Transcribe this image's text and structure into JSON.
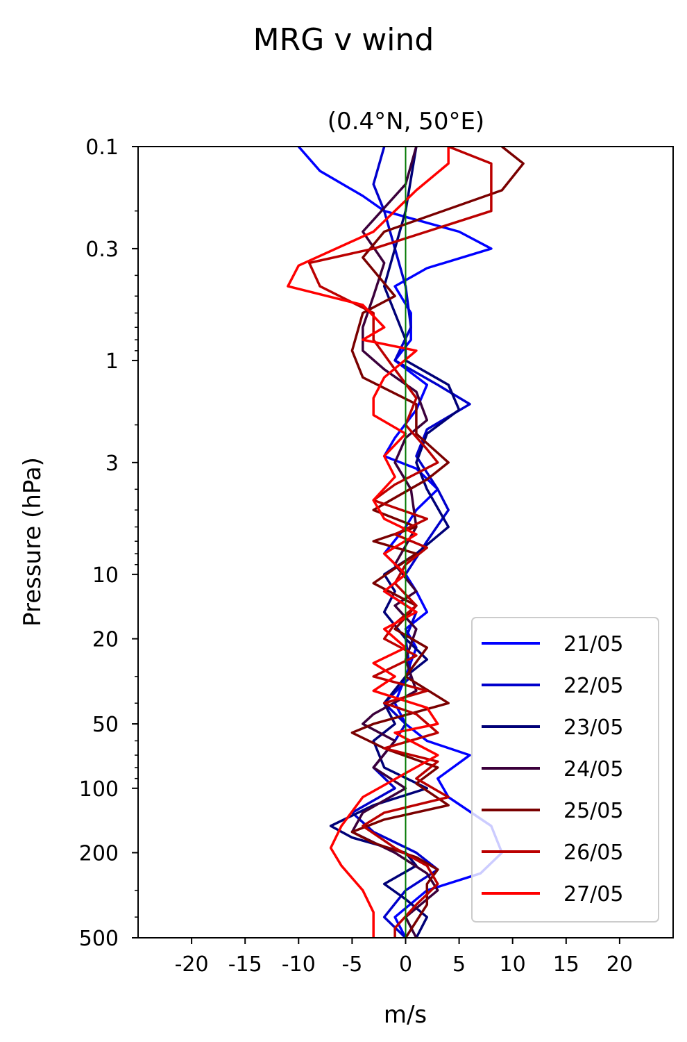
{
  "chart_data": {
    "type": "line",
    "suptitle": "MRG v wind",
    "title": "(0.4°N, 50°E)",
    "xlabel": "m/s",
    "ylabel": "Pressure (hPa)",
    "xlim": [
      -25,
      25
    ],
    "ylim": [
      500,
      0.1
    ],
    "y_scale": "log",
    "x_ticks": [
      -20,
      -15,
      -10,
      -5,
      0,
      5,
      10,
      15,
      20
    ],
    "x_tick_labels": [
      "-20",
      "-15",
      "-10",
      "-5",
      "0",
      "5",
      "10",
      "15",
      "20"
    ],
    "y_ticks": [
      0.1,
      0.3,
      1,
      3,
      10,
      20,
      50,
      100,
      200,
      500
    ],
    "y_tick_labels": [
      "0.1",
      "0.3",
      "1",
      "3",
      "10",
      "20",
      "50",
      "100",
      "200",
      "500"
    ],
    "zero_line_color": "#007700",
    "legend_position": "lower right",
    "series": [
      {
        "name": "21/05",
        "color": "#0000ff",
        "points": [
          [
            -10,
            0.1
          ],
          [
            -8,
            0.13
          ],
          [
            -4,
            0.17
          ],
          [
            -2,
            0.2
          ],
          [
            5,
            0.25
          ],
          [
            8,
            0.3
          ],
          [
            2,
            0.37
          ],
          [
            -1,
            0.45
          ],
          [
            0.5,
            0.6
          ],
          [
            0.5,
            0.8
          ],
          [
            -1,
            1
          ],
          [
            2,
            1.3
          ],
          [
            1,
            1.7
          ],
          [
            -1,
            2.3
          ],
          [
            -2,
            2.8
          ],
          [
            1,
            3.2
          ],
          [
            3,
            4
          ],
          [
            1,
            5
          ],
          [
            0,
            6
          ],
          [
            -2,
            8
          ],
          [
            0,
            10
          ],
          [
            1,
            12
          ],
          [
            2,
            15
          ],
          [
            0,
            18
          ],
          [
            1,
            22
          ],
          [
            0,
            30
          ],
          [
            -1,
            40
          ],
          [
            0,
            50
          ],
          [
            2,
            60
          ],
          [
            6,
            70
          ],
          [
            3,
            90
          ],
          [
            4,
            110
          ],
          [
            8,
            150
          ],
          [
            9,
            200
          ],
          [
            7,
            250
          ],
          [
            2,
            300
          ],
          [
            -1,
            400
          ],
          [
            0,
            500
          ]
        ]
      },
      {
        "name": "22/05",
        "color": "#0000cc",
        "points": [
          [
            -2,
            0.1
          ],
          [
            -3,
            0.15
          ],
          [
            -2,
            0.2
          ],
          [
            -1,
            0.3
          ],
          [
            0,
            0.45
          ],
          [
            0.5,
            0.7
          ],
          [
            -1,
            1
          ],
          [
            3,
            1.3
          ],
          [
            6,
            1.6
          ],
          [
            2,
            2.1
          ],
          [
            1,
            2.8
          ],
          [
            3,
            4
          ],
          [
            4,
            5
          ],
          [
            2,
            7
          ],
          [
            0,
            10
          ],
          [
            -2,
            12
          ],
          [
            1,
            15
          ],
          [
            0,
            20
          ],
          [
            0.5,
            30
          ],
          [
            -2,
            40
          ],
          [
            0,
            50
          ],
          [
            -1,
            60
          ],
          [
            -3,
            80
          ],
          [
            -1,
            100
          ],
          [
            -5,
            130
          ],
          [
            -3,
            160
          ],
          [
            1,
            200
          ],
          [
            3,
            240
          ],
          [
            0,
            300
          ],
          [
            -2,
            400
          ],
          [
            0,
            500
          ]
        ]
      },
      {
        "name": "23/05",
        "color": "#000077",
        "points": [
          [
            1,
            0.1
          ],
          [
            0,
            0.2
          ],
          [
            -1,
            0.3
          ],
          [
            -2,
            0.45
          ],
          [
            0,
            0.8
          ],
          [
            0,
            1
          ],
          [
            4,
            1.3
          ],
          [
            5,
            1.7
          ],
          [
            2,
            2.2
          ],
          [
            1,
            3
          ],
          [
            2,
            4
          ],
          [
            4,
            6
          ],
          [
            1,
            8
          ],
          [
            -2,
            10
          ],
          [
            -1,
            12
          ],
          [
            -2,
            15
          ],
          [
            0,
            20
          ],
          [
            2,
            25
          ],
          [
            0,
            30
          ],
          [
            -2,
            40
          ],
          [
            -1,
            50
          ],
          [
            -3,
            60
          ],
          [
            -2,
            80
          ],
          [
            2,
            100
          ],
          [
            -3,
            120
          ],
          [
            -7,
            150
          ],
          [
            -5,
            170
          ],
          [
            0,
            200
          ],
          [
            1,
            230
          ],
          [
            -2,
            280
          ],
          [
            0,
            330
          ],
          [
            2,
            400
          ],
          [
            1,
            500
          ]
        ]
      },
      {
        "name": "24/05",
        "color": "#3b003b",
        "points": [
          [
            1,
            0.1
          ],
          [
            0,
            0.15
          ],
          [
            -4,
            0.25
          ],
          [
            -2,
            0.35
          ],
          [
            -3,
            0.5
          ],
          [
            -4,
            0.7
          ],
          [
            -4,
            0.9
          ],
          [
            -2,
            1.1
          ],
          [
            1,
            1.4
          ],
          [
            2,
            1.9
          ],
          [
            0,
            2.3
          ],
          [
            -1,
            3
          ],
          [
            0.5,
            4
          ],
          [
            1,
            6
          ],
          [
            -1,
            9
          ],
          [
            1,
            12
          ],
          [
            -1,
            14
          ],
          [
            1,
            18
          ],
          [
            0,
            25
          ],
          [
            1,
            35
          ],
          [
            -3,
            45
          ],
          [
            -4,
            50
          ],
          [
            -1,
            60
          ],
          [
            -3,
            80
          ],
          [
            0,
            100
          ],
          [
            -4,
            130
          ],
          [
            -5,
            160
          ],
          [
            -1,
            200
          ],
          [
            2,
            250
          ],
          [
            3,
            300
          ],
          [
            0,
            400
          ],
          [
            1,
            500
          ]
        ]
      },
      {
        "name": "25/05",
        "color": "#7a0000",
        "points": [
          [
            9,
            0.1
          ],
          [
            11,
            0.12
          ],
          [
            9,
            0.16
          ],
          [
            -2,
            0.25
          ],
          [
            -4,
            0.33
          ],
          [
            -1,
            0.5
          ],
          [
            -4,
            0.6
          ],
          [
            -5,
            0.9
          ],
          [
            -4,
            1.2
          ],
          [
            1,
            1.6
          ],
          [
            1,
            2.2
          ],
          [
            4,
            3
          ],
          [
            2,
            3.6
          ],
          [
            -3,
            5
          ],
          [
            1,
            6
          ],
          [
            -3,
            7
          ],
          [
            1,
            8
          ],
          [
            -3,
            11
          ],
          [
            1,
            14
          ],
          [
            -1,
            18
          ],
          [
            2,
            22
          ],
          [
            0,
            30
          ],
          [
            4,
            40
          ],
          [
            -3,
            50
          ],
          [
            -5,
            55
          ],
          [
            -2,
            65
          ],
          [
            3,
            80
          ],
          [
            1,
            95
          ],
          [
            4,
            120
          ],
          [
            -2,
            140
          ],
          [
            -5,
            160
          ],
          [
            -3,
            180
          ],
          [
            1,
            210
          ],
          [
            3,
            240
          ],
          [
            2,
            280
          ],
          [
            2,
            350
          ],
          [
            0,
            500
          ]
        ]
      },
      {
        "name": "26/05",
        "color": "#bb0000",
        "points": [
          [
            4,
            0.1
          ],
          [
            8,
            0.12
          ],
          [
            8,
            0.2
          ],
          [
            -3,
            0.3
          ],
          [
            -9,
            0.35
          ],
          [
            -8,
            0.45
          ],
          [
            -3,
            0.6
          ],
          [
            -3,
            0.8
          ],
          [
            -1,
            1.1
          ],
          [
            1,
            1.5
          ],
          [
            0,
            2
          ],
          [
            2,
            2.6
          ],
          [
            3,
            3
          ],
          [
            -1,
            3.8
          ],
          [
            -3,
            4.5
          ],
          [
            2,
            5.5
          ],
          [
            -1,
            6.5
          ],
          [
            2,
            7.5
          ],
          [
            0,
            9
          ],
          [
            -1,
            11
          ],
          [
            1,
            14
          ],
          [
            -1,
            17
          ],
          [
            -2,
            20
          ],
          [
            1,
            24
          ],
          [
            -3,
            30
          ],
          [
            2,
            35
          ],
          [
            -2,
            40
          ],
          [
            1,
            45
          ],
          [
            3,
            55
          ],
          [
            -2,
            65
          ],
          [
            3,
            75
          ],
          [
            1,
            90
          ],
          [
            4,
            110
          ],
          [
            -2,
            130
          ],
          [
            -4,
            150
          ],
          [
            -1,
            190
          ],
          [
            2,
            230
          ],
          [
            3,
            280
          ],
          [
            1,
            350
          ],
          [
            -1,
            450
          ],
          [
            -1,
            500
          ]
        ]
      },
      {
        "name": "27/05",
        "color": "#ff0000",
        "points": [
          [
            4,
            0.1
          ],
          [
            4,
            0.12
          ],
          [
            1,
            0.16
          ],
          [
            -3,
            0.25
          ],
          [
            -10,
            0.36
          ],
          [
            -11,
            0.45
          ],
          [
            -4,
            0.55
          ],
          [
            -2,
            0.7
          ],
          [
            -4,
            0.8
          ],
          [
            1,
            0.9
          ],
          [
            -2,
            1.2
          ],
          [
            -3,
            1.5
          ],
          [
            -3,
            1.8
          ],
          [
            0,
            2.2
          ],
          [
            -2,
            2.8
          ],
          [
            -1,
            3.5
          ],
          [
            -3,
            4.5
          ],
          [
            -2,
            5.5
          ],
          [
            1,
            6.5
          ],
          [
            -2,
            8
          ],
          [
            0,
            10
          ],
          [
            -2,
            12
          ],
          [
            1,
            15
          ],
          [
            -2,
            18
          ],
          [
            0,
            22
          ],
          [
            -3,
            26
          ],
          [
            -1,
            30
          ],
          [
            -3,
            35
          ],
          [
            2,
            42
          ],
          [
            3,
            50
          ],
          [
            -1,
            55
          ],
          [
            3,
            70
          ],
          [
            0,
            85
          ],
          [
            -4,
            110
          ],
          [
            -6,
            150
          ],
          [
            -7,
            190
          ],
          [
            -6,
            230
          ],
          [
            -4,
            300
          ],
          [
            -3,
            380
          ],
          [
            -3,
            500
          ]
        ]
      }
    ]
  }
}
